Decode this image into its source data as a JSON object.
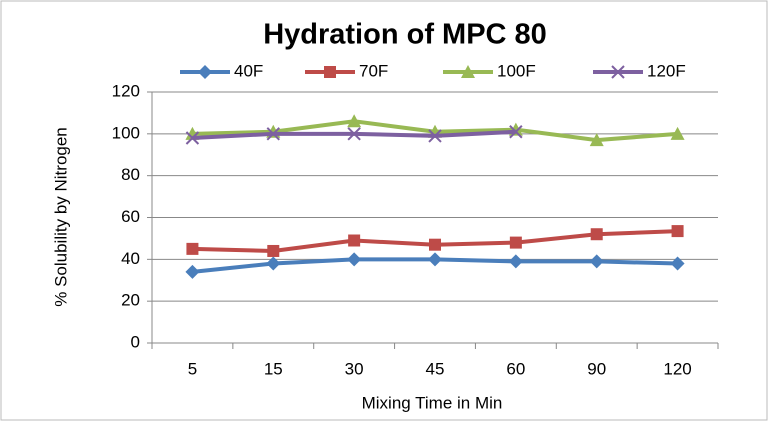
{
  "chart_data": {
    "type": "line",
    "title": "Hydration of MPC 80",
    "x_label": "Mixing Time  in Min",
    "y_label": "% Solubility by Nitrogen",
    "categories": [
      "5",
      "15",
      "30",
      "45",
      "60",
      "90",
      "120"
    ],
    "series": [
      {
        "name": "40F",
        "color": "#4a7ebb",
        "marker": "diamond",
        "values": [
          34,
          38,
          40,
          40,
          39,
          39,
          38
        ]
      },
      {
        "name": "70F",
        "color": "#be4b48",
        "marker": "square",
        "values": [
          45,
          44,
          49,
          47,
          48,
          52,
          53.5
        ]
      },
      {
        "name": "100F",
        "color": "#98b954",
        "marker": "triangle",
        "values": [
          100,
          101,
          106,
          101,
          102,
          97,
          100
        ]
      },
      {
        "name": "120F",
        "color": "#7d60a0",
        "marker": "x",
        "values": [
          98,
          100,
          100,
          99,
          101,
          null,
          null
        ]
      }
    ],
    "ylim": [
      0,
      120
    ],
    "yticks": [
      0,
      20,
      40,
      60,
      80,
      100,
      120
    ],
    "grid": true,
    "legend": "top"
  }
}
